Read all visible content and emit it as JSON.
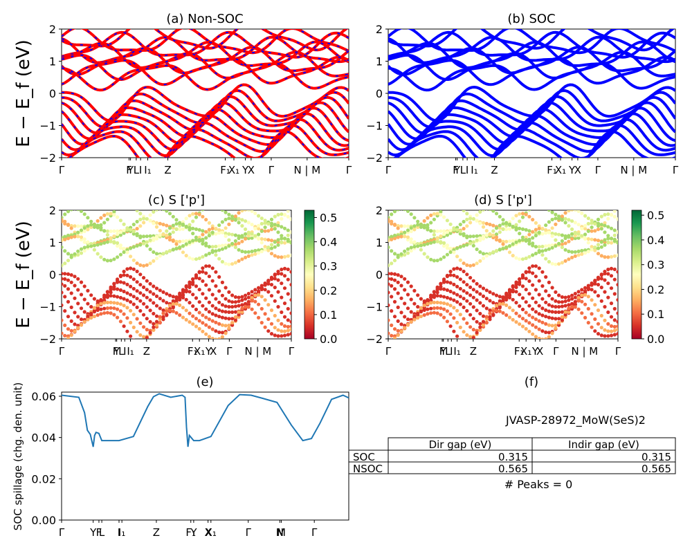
{
  "charts": [
    {
      "id": "a",
      "title": "(a) Non-SOC",
      "ylabel": "E − E_f (eV)",
      "yticks": [
        "2",
        "1",
        "0",
        "−1",
        "−2"
      ],
      "xticks": [
        "Γ",
        "F",
        "Y",
        "L",
        "I",
        "I1",
        "Z",
        "F1",
        "X1",
        "Y",
        "X",
        "Γ",
        "N | M",
        "Γ"
      ]
    },
    {
      "id": "b",
      "title": "(b) SOC",
      "yticks": [
        "2",
        "1",
        "0",
        "−1",
        "−2"
      ],
      "xticks": [
        "Γ",
        "F",
        "Y",
        "L",
        "I",
        "I1",
        "Z",
        "F1",
        "X1",
        "Y",
        "X",
        "Γ",
        "N | M",
        "Γ"
      ]
    },
    {
      "id": "c",
      "title": "(c)  S ['p']",
      "ylabel": "E − E_f (eV)",
      "yticks": [
        "2",
        "1",
        "0",
        "−1",
        "−2"
      ],
      "colorbar_ticks": [
        "0.5",
        "0.4",
        "0.3",
        "0.2",
        "0.1",
        "0.0"
      ]
    },
    {
      "id": "d",
      "title": "(d) S ['p']",
      "yticks": [
        "2",
        "1",
        "0",
        "−1",
        "−2"
      ],
      "colorbar_ticks": [
        "0.5",
        "0.4",
        "0.3",
        "0.2",
        "0.1",
        "0.0"
      ]
    },
    {
      "id": "e",
      "title": "(e)",
      "ylabel": "SOC spillage (chg. den. unit)",
      "yticks": [
        "0.06",
        "0.04",
        "0.02",
        "0.00"
      ]
    },
    {
      "id": "f",
      "title": "(f)"
    }
  ],
  "chart_data": [
    {
      "type": "line",
      "title": "(a) Non-SOC",
      "ylabel": "E − E_f (eV)",
      "ylim": [
        -2,
        2
      ],
      "x_ticks": [
        "Γ",
        "F",
        "Y",
        "L",
        "I",
        "I1",
        "Z",
        "F1",
        "X1",
        "Y",
        "X",
        "Γ",
        "N | M",
        "Γ"
      ],
      "series": [
        {
          "name": "non-SOC",
          "color": "#ff0000"
        },
        {
          "name": "SOC",
          "color": "#0000ff"
        }
      ]
    },
    {
      "type": "line",
      "title": "(b) SOC",
      "ylim": [
        -2,
        2
      ],
      "x_ticks": [
        "Γ",
        "F",
        "Y",
        "L",
        "I",
        "I1",
        "Z",
        "F1",
        "X1",
        "Y",
        "X",
        "Γ",
        "N | M",
        "Γ"
      ],
      "series": [
        {
          "name": "SOC",
          "color": "#0000ff"
        }
      ]
    },
    {
      "type": "scatter",
      "title": "(c)  S ['p']",
      "ylabel": "E − E_f (eV)",
      "ylim": [
        -2,
        2
      ],
      "colorbar_range": [
        0,
        0.53
      ],
      "colormap": "RdYlGn"
    },
    {
      "type": "scatter",
      "title": "(d) S ['p']",
      "ylim": [
        -2,
        2
      ],
      "colorbar_range": [
        0,
        0.52
      ],
      "colormap": "RdYlGn"
    },
    {
      "type": "line",
      "title": "(e)",
      "ylabel": "SOC spillage (chg. den. unit)",
      "ylim": [
        0,
        0.062
      ],
      "x_ticks": [
        "Γ",
        "Y",
        "F",
        "L",
        "I",
        "I1",
        "Z",
        "F1",
        "Y",
        "X",
        "X1",
        "Γ",
        "N",
        "M",
        "Γ"
      ],
      "series": [
        {
          "name": "spillage",
          "color": "#1f77b4",
          "x": [
            0,
            0.06,
            0.08,
            0.09,
            0.1,
            0.11,
            0.115,
            0.12,
            0.13,
            0.14,
            0.15,
            0.2,
            0.25,
            0.3,
            0.32,
            0.34,
            0.38,
            0.42,
            0.43,
            0.435,
            0.44,
            0.445,
            0.46,
            0.48,
            0.52,
            0.58,
            0.62,
            0.66,
            0.7,
            0.75,
            0.8,
            0.84,
            0.87,
            0.9,
            0.94,
            0.98,
            1.0
          ],
          "values": [
            0.0605,
            0.0595,
            0.052,
            0.0435,
            0.0415,
            0.0355,
            0.041,
            0.0425,
            0.042,
            0.0385,
            0.0385,
            0.0385,
            0.0405,
            0.055,
            0.0598,
            0.0612,
            0.0595,
            0.0605,
            0.0595,
            0.045,
            0.0355,
            0.041,
            0.0385,
            0.0385,
            0.0405,
            0.0555,
            0.0608,
            0.0605,
            0.059,
            0.057,
            0.046,
            0.0385,
            0.0395,
            0.047,
            0.0585,
            0.0605,
            0.0592
          ]
        }
      ]
    },
    {
      "type": "table",
      "title": "(f)",
      "text": "JVASP-28972_MoW(SeS)2",
      "columns": [
        "",
        "Dir gap (eV)",
        "Indir gap (eV)"
      ],
      "rows": [
        [
          "SOC",
          "0.315",
          "0.315"
        ],
        [
          "NSOC",
          "0.565",
          "0.565"
        ]
      ],
      "footnote": "# Peaks = 0"
    }
  ]
}
